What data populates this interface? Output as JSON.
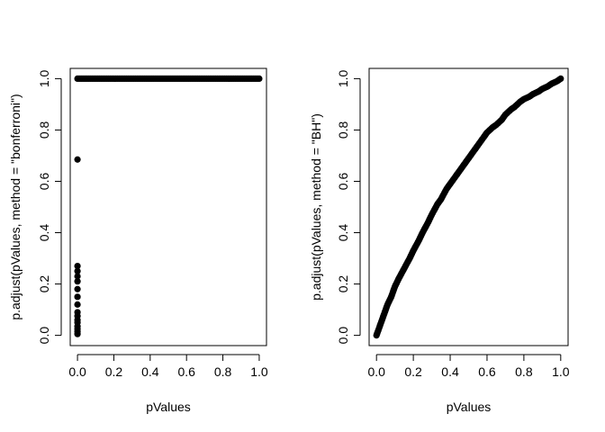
{
  "chart_data": [
    {
      "type": "scatter",
      "title": "",
      "xlabel": "pValues",
      "ylabel": "p.adjust(pValues, method = \"bonferroni\")",
      "xlim": [
        0,
        1
      ],
      "ylim": [
        0,
        1
      ],
      "xticks": [
        "0.0",
        "0.2",
        "0.4",
        "0.6",
        "0.8",
        "1.0"
      ],
      "yticks": [
        "0.0",
        "0.2",
        "0.4",
        "0.6",
        "0.8",
        "1.0"
      ],
      "grid": false,
      "marker_color": "#000000",
      "series": [
        {
          "points": [
            [
              0.0,
              0.005
            ],
            [
              0.0,
              0.015
            ],
            [
              0.0,
              0.025
            ],
            [
              0.0,
              0.035
            ],
            [
              0.0,
              0.05
            ],
            [
              0.0,
              0.06
            ],
            [
              0.0,
              0.075
            ],
            [
              0.0,
              0.09
            ],
            [
              0.0,
              0.12
            ],
            [
              0.0,
              0.15
            ],
            [
              0.0,
              0.18
            ],
            [
              0.0,
              0.21
            ],
            [
              0.0,
              0.23
            ],
            [
              0.0,
              0.25
            ],
            [
              0.0,
              0.27
            ],
            [
              0.0,
              0.685
            ],
            [
              0.0,
              1.0
            ],
            [
              0.02,
              1.0
            ],
            [
              0.05,
              1.0
            ],
            [
              0.1,
              1.0
            ],
            [
              0.15,
              1.0
            ],
            [
              0.2,
              1.0
            ],
            [
              0.25,
              1.0
            ],
            [
              0.3,
              1.0
            ],
            [
              0.35,
              1.0
            ],
            [
              0.4,
              1.0
            ],
            [
              0.45,
              1.0
            ],
            [
              0.5,
              1.0
            ],
            [
              0.55,
              1.0
            ],
            [
              0.6,
              1.0
            ],
            [
              0.65,
              1.0
            ],
            [
              0.7,
              1.0
            ],
            [
              0.75,
              1.0
            ],
            [
              0.8,
              1.0
            ],
            [
              0.85,
              1.0
            ],
            [
              0.9,
              1.0
            ],
            [
              0.95,
              1.0
            ],
            [
              1.0,
              1.0
            ]
          ]
        }
      ]
    },
    {
      "type": "scatter",
      "title": "",
      "xlabel": "pValues",
      "ylabel": "p.adjust(pValues, method = \"BH\")",
      "xlim": [
        0,
        1
      ],
      "ylim": [
        0,
        1
      ],
      "xticks": [
        "0.0",
        "0.2",
        "0.4",
        "0.6",
        "0.8",
        "1.0"
      ],
      "yticks": [
        "0.0",
        "0.2",
        "0.4",
        "0.6",
        "0.8",
        "1.0"
      ],
      "grid": false,
      "marker_color": "#000000",
      "series": [
        {
          "points": [
            [
              0.0,
              0.0
            ],
            [
              0.02,
              0.04
            ],
            [
              0.04,
              0.08
            ],
            [
              0.06,
              0.12
            ],
            [
              0.08,
              0.15
            ],
            [
              0.1,
              0.19
            ],
            [
              0.12,
              0.22
            ],
            [
              0.15,
              0.26
            ],
            [
              0.18,
              0.3
            ],
            [
              0.2,
              0.33
            ],
            [
              0.23,
              0.37
            ],
            [
              0.25,
              0.4
            ],
            [
              0.28,
              0.44
            ],
            [
              0.3,
              0.47
            ],
            [
              0.33,
              0.51
            ],
            [
              0.35,
              0.53
            ],
            [
              0.38,
              0.57
            ],
            [
              0.4,
              0.59
            ],
            [
              0.43,
              0.62
            ],
            [
              0.45,
              0.64
            ],
            [
              0.48,
              0.67
            ],
            [
              0.5,
              0.69
            ],
            [
              0.53,
              0.72
            ],
            [
              0.55,
              0.74
            ],
            [
              0.58,
              0.77
            ],
            [
              0.6,
              0.79
            ],
            [
              0.63,
              0.81
            ],
            [
              0.65,
              0.82
            ],
            [
              0.68,
              0.84
            ],
            [
              0.7,
              0.86
            ],
            [
              0.73,
              0.88
            ],
            [
              0.75,
              0.89
            ],
            [
              0.78,
              0.91
            ],
            [
              0.8,
              0.92
            ],
            [
              0.83,
              0.93
            ],
            [
              0.85,
              0.94
            ],
            [
              0.88,
              0.95
            ],
            [
              0.9,
              0.96
            ],
            [
              0.93,
              0.97
            ],
            [
              0.95,
              0.98
            ],
            [
              0.98,
              0.99
            ],
            [
              1.0,
              1.0
            ]
          ]
        }
      ]
    }
  ]
}
